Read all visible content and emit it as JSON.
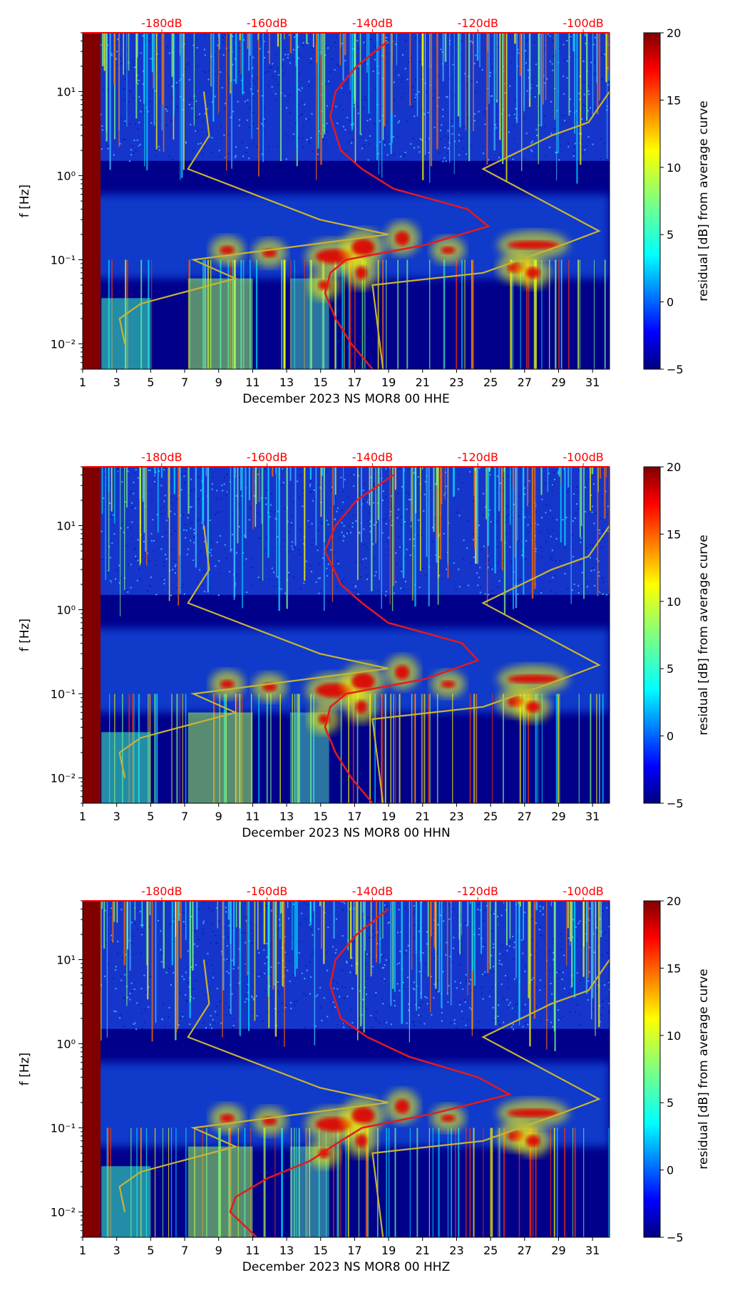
{
  "chart_data": [
    {
      "type": "heatmap",
      "xlabel": "December 2023 NS MOR8 00 HHE",
      "ylabel": "f [Hz]",
      "x_ticks": [
        "1",
        "3",
        "5",
        "7",
        "9",
        "11",
        "13",
        "15",
        "17",
        "19",
        "21",
        "23",
        "25",
        "27",
        "29",
        "31"
      ],
      "xlim": [
        1,
        32
      ],
      "y_ticks": [
        "10⁻²",
        "10⁻¹",
        "10⁰",
        "10¹"
      ],
      "ylim_hz": [
        0.005,
        50
      ],
      "top_labels": [
        "-180dB",
        "-160dB",
        "-140dB",
        "-120dB",
        "-100dB"
      ],
      "colorbar": {
        "label": "residual [dB] from average curve",
        "ticks": [
          "−5",
          "0",
          "5",
          "10",
          "15",
          "20"
        ],
        "range": [
          -5,
          20
        ]
      },
      "series": [
        {
          "name": "average curve (red)",
          "color": "#e41a1c",
          "freq_hz": [
            0.005,
            0.01,
            0.02,
            0.04,
            0.07,
            0.1,
            0.15,
            0.25,
            0.4,
            0.7,
            1.2,
            2,
            5,
            10,
            20,
            40
          ],
          "db": [
            -140,
            -144,
            -147,
            -149,
            -148,
            -145,
            -130,
            -118,
            -122,
            -136,
            -142,
            -146,
            -148,
            -147,
            -143,
            -137
          ]
        },
        {
          "name": "Peterson NLNM (gold)",
          "color": "#c8b432",
          "freq_hz": [
            0.01,
            0.02,
            0.03,
            0.06,
            0.1,
            0.2,
            0.3,
            1.2,
            3,
            10
          ],
          "db": [
            -187,
            -188,
            -184,
            -166,
            -174,
            -137,
            -150,
            -175,
            -171,
            -172
          ]
        },
        {
          "name": "Peterson NHNM (gold)",
          "color": "#c8b432",
          "freq_hz": [
            0.005,
            0.05,
            0.07,
            0.15,
            0.22,
            1.2,
            3,
            4.3,
            10
          ],
          "db": [
            -138,
            -140,
            -119,
            -104,
            -97,
            -119,
            -106,
            -99,
            -95
          ]
        }
      ]
    },
    {
      "type": "heatmap",
      "xlabel": "December 2023 NS MOR8 00 HHN",
      "ylabel": "f [Hz]",
      "x_ticks": [
        "1",
        "3",
        "5",
        "7",
        "9",
        "11",
        "13",
        "15",
        "17",
        "19",
        "21",
        "23",
        "25",
        "27",
        "29",
        "31"
      ],
      "xlim": [
        1,
        32
      ],
      "y_ticks": [
        "10⁻²",
        "10⁻¹",
        "10⁰",
        "10¹"
      ],
      "ylim_hz": [
        0.005,
        50
      ],
      "top_labels": [
        "-180dB",
        "-160dB",
        "-140dB",
        "-120dB",
        "-100dB"
      ],
      "colorbar": {
        "label": "residual [dB] from average curve",
        "ticks": [
          "−5",
          "0",
          "5",
          "10",
          "15",
          "20"
        ],
        "range": [
          -5,
          20
        ]
      },
      "series": [
        {
          "name": "average curve (red)",
          "color": "#e41a1c",
          "freq_hz": [
            0.005,
            0.01,
            0.02,
            0.04,
            0.07,
            0.1,
            0.15,
            0.25,
            0.4,
            0.7,
            1.2,
            2,
            5,
            10,
            20,
            40
          ],
          "db": [
            -140,
            -144,
            -147,
            -149,
            -148,
            -145,
            -130,
            -120,
            -123,
            -137,
            -142,
            -146,
            -149,
            -147,
            -143,
            -136
          ]
        },
        {
          "name": "Peterson NLNM (gold)",
          "color": "#c8b432",
          "freq_hz": [
            0.01,
            0.02,
            0.03,
            0.06,
            0.1,
            0.2,
            0.3,
            1.2,
            3,
            10
          ],
          "db": [
            -187,
            -188,
            -184,
            -166,
            -174,
            -137,
            -150,
            -175,
            -171,
            -172
          ]
        },
        {
          "name": "Peterson NHNM (gold)",
          "color": "#c8b432",
          "freq_hz": [
            0.005,
            0.05,
            0.07,
            0.15,
            0.22,
            1.2,
            3,
            4.3,
            10
          ],
          "db": [
            -138,
            -140,
            -119,
            -104,
            -97,
            -119,
            -106,
            -99,
            -95
          ]
        }
      ]
    },
    {
      "type": "heatmap",
      "xlabel": "December 2023 NS MOR8 00 HHZ",
      "ylabel": "f [Hz]",
      "x_ticks": [
        "1",
        "3",
        "5",
        "7",
        "9",
        "11",
        "13",
        "15",
        "17",
        "19",
        "21",
        "23",
        "25",
        "27",
        "29",
        "31"
      ],
      "xlim": [
        1,
        32
      ],
      "y_ticks": [
        "10⁻²",
        "10⁻¹",
        "10⁰",
        "10¹"
      ],
      "ylim_hz": [
        0.005,
        50
      ],
      "top_labels": [
        "-180dB",
        "-160dB",
        "-140dB",
        "-120dB",
        "-100dB"
      ],
      "colorbar": {
        "label": "residual [dB] from average curve",
        "ticks": [
          "−5",
          "0",
          "5",
          "10",
          "15",
          "20"
        ],
        "range": [
          -5,
          20
        ]
      },
      "series": [
        {
          "name": "average curve (red)",
          "color": "#e41a1c",
          "freq_hz": [
            0.005,
            0.01,
            0.015,
            0.025,
            0.04,
            0.07,
            0.1,
            0.15,
            0.25,
            0.4,
            0.7,
            1.2,
            2,
            5,
            10,
            20,
            40
          ],
          "db": [
            -162,
            -167,
            -166,
            -160,
            -152,
            -146,
            -142,
            -128,
            -114,
            -120,
            -133,
            -141,
            -146,
            -148,
            -147,
            -143,
            -137
          ]
        },
        {
          "name": "Peterson NLNM (gold)",
          "color": "#c8b432",
          "freq_hz": [
            0.01,
            0.02,
            0.03,
            0.06,
            0.1,
            0.2,
            0.3,
            1.2,
            3,
            10
          ],
          "db": [
            -187,
            -188,
            -184,
            -166,
            -174,
            -137,
            -150,
            -175,
            -171,
            -172
          ]
        },
        {
          "name": "Peterson NHNM (gold)",
          "color": "#c8b432",
          "freq_hz": [
            0.005,
            0.05,
            0.07,
            0.15,
            0.22,
            1.2,
            3,
            4.3,
            10
          ],
          "db": [
            -138,
            -140,
            -119,
            -104,
            -97,
            -119,
            -106,
            -99,
            -95
          ]
        }
      ]
    }
  ]
}
